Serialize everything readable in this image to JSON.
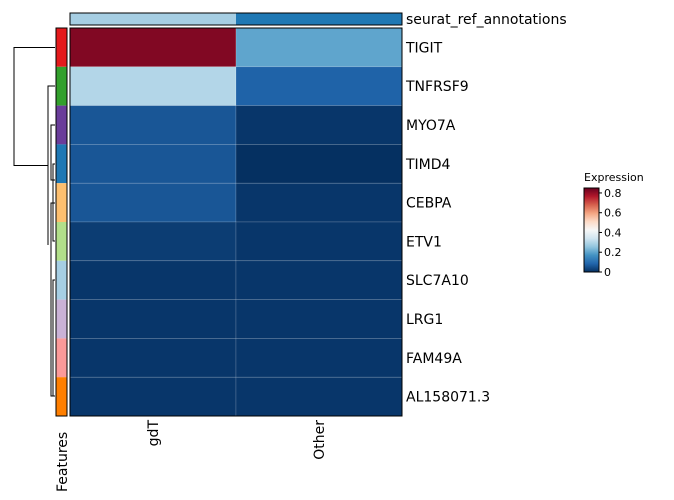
{
  "chart_data": {
    "type": "heatmap",
    "annotation_title": "seurat_ref_annotations",
    "column_annotation_colors": [
      "#A6CEE3",
      "#1F78B4"
    ],
    "categories": [
      "gdT",
      "Other"
    ],
    "features": [
      "TIGIT",
      "TNFRSF9",
      "MYO7A",
      "TIMD4",
      "CEBPA",
      "ETV1",
      "SLC7A10",
      "LRG1",
      "FAM49A",
      "AL158071.3"
    ],
    "feature_colors": [
      "#E41A1C",
      "#33A02C",
      "#6A3D9A",
      "#1F78B4",
      "#FDBF6F",
      "#B2DF8A",
      "#A6CEE3",
      "#CAB2D6",
      "#FB9A99",
      "#FF7F00"
    ],
    "feature_axis_label": "Features",
    "values": [
      [
        0.82,
        0.2
      ],
      [
        0.3,
        0.08
      ],
      [
        0.06,
        0.01
      ],
      [
        0.06,
        0.0
      ],
      [
        0.06,
        0.01
      ],
      [
        0.02,
        0.01
      ],
      [
        0.01,
        0.01
      ],
      [
        0.01,
        0.01
      ],
      [
        0.01,
        0.01
      ],
      [
        0.01,
        0.01
      ]
    ],
    "legend": {
      "title": "Expression",
      "ticks": [
        "0",
        "0.2",
        "0.4",
        "0.6",
        "0.8"
      ],
      "range": [
        0,
        0.85
      ],
      "palette": [
        "#053061",
        "#2166AC",
        "#4393C3",
        "#92C5DE",
        "#D1E5F0",
        "#F7F7F7",
        "#FDDBC7",
        "#F4A582",
        "#D6604D",
        "#B2182B",
        "#67001F"
      ]
    }
  }
}
